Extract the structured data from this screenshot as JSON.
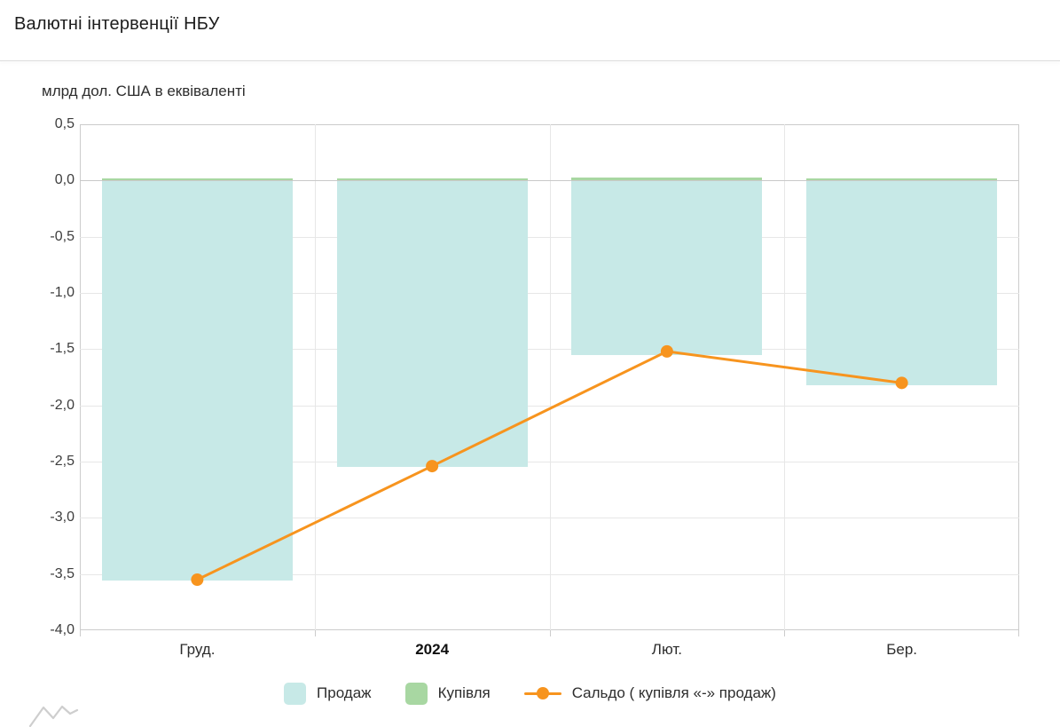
{
  "header": {
    "title": "Валютні інтервенції НБУ"
  },
  "chart_data": {
    "type": "bar",
    "title": "Валютні інтервенції НБУ",
    "ylabel": "млрд дол. США в еквіваленті",
    "xlabel": "",
    "categories": [
      "Груд.",
      "2024",
      "Лют.",
      "Бер."
    ],
    "emphasized_category": "2024",
    "series": [
      {
        "name": "Продаж",
        "type": "bar",
        "color": "#c7e9e7",
        "values": [
          -3.56,
          -2.55,
          -1.55,
          -1.82
        ]
      },
      {
        "name": "Купівля",
        "type": "bar",
        "color": "#a8d7a2",
        "values": [
          0.01,
          0.01,
          0.03,
          0.02
        ]
      },
      {
        "name": "Сальдо ( купівля «-» продаж)",
        "type": "line",
        "color": "#f7941e",
        "marker": "circle",
        "values": [
          -3.55,
          -2.54,
          -1.52,
          -1.8
        ]
      }
    ],
    "ylim": [
      -4.0,
      0.5
    ],
    "yticks": [
      0.5,
      0.0,
      -0.5,
      -1.0,
      -1.5,
      -2.0,
      -2.5,
      -3.0,
      -3.5,
      -4.0
    ],
    "ytick_labels": [
      "0,5",
      "0,0",
      "-0,5",
      "-1,0",
      "-1,5",
      "-2,0",
      "-2,5",
      "-3,0",
      "-3,5",
      "-4,0"
    ],
    "grid": true,
    "legend_position": "bottom"
  },
  "colors": {
    "grid": "#e7e7e7",
    "plot_border": "#cccccc",
    "zero_axis": "#c9c9c9",
    "axis_text": "#3d3d3d"
  }
}
